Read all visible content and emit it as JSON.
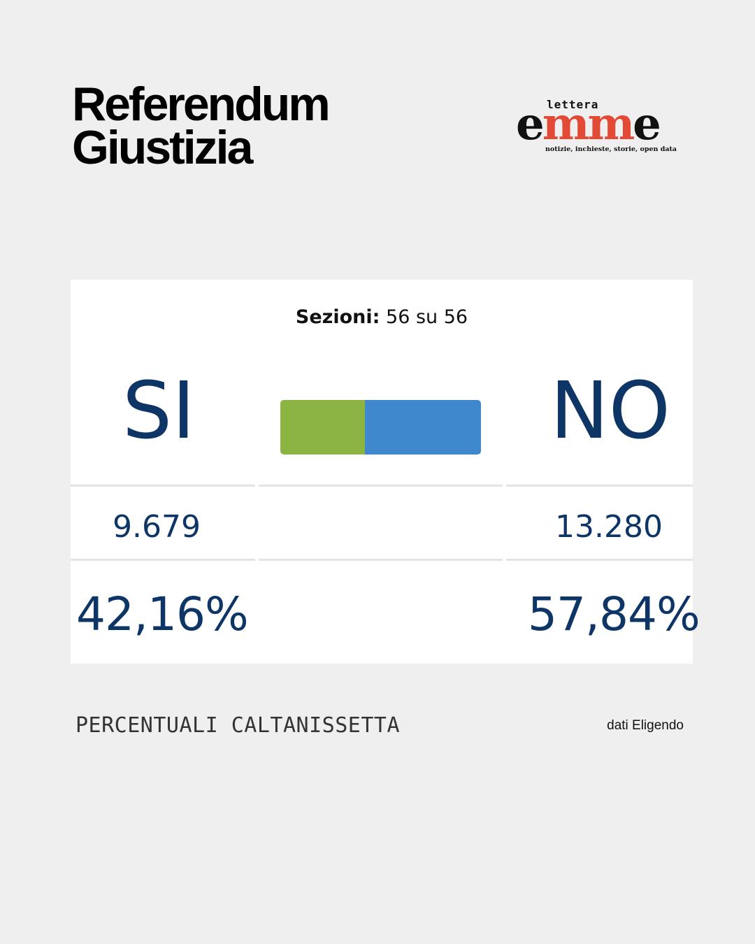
{
  "title": {
    "line1": "Referendum",
    "line2": "Giustizia"
  },
  "logo": {
    "small": "lettera",
    "part1": "e",
    "part2": "mm",
    "part3": "e",
    "tagline": "notizie, inchieste, storie, open data"
  },
  "sezioni": {
    "label": "Sezioni:",
    "value": "56 su 56"
  },
  "options": {
    "si": {
      "label": "SI",
      "votes": "9.679",
      "percent": "42,16%"
    },
    "no": {
      "label": "NO",
      "votes": "13.280",
      "percent": "57,84%"
    }
  },
  "bar": {
    "si_fraction": 0.4216,
    "no_fraction": 0.5784,
    "si_color": "#8bb443",
    "no_color": "#3f88cd"
  },
  "footer": {
    "left": "PERCENTUALI CALTANISSETTA",
    "right": "dati Eligendo"
  },
  "colors": {
    "background": "#efefef",
    "accent": "#0d3566"
  }
}
